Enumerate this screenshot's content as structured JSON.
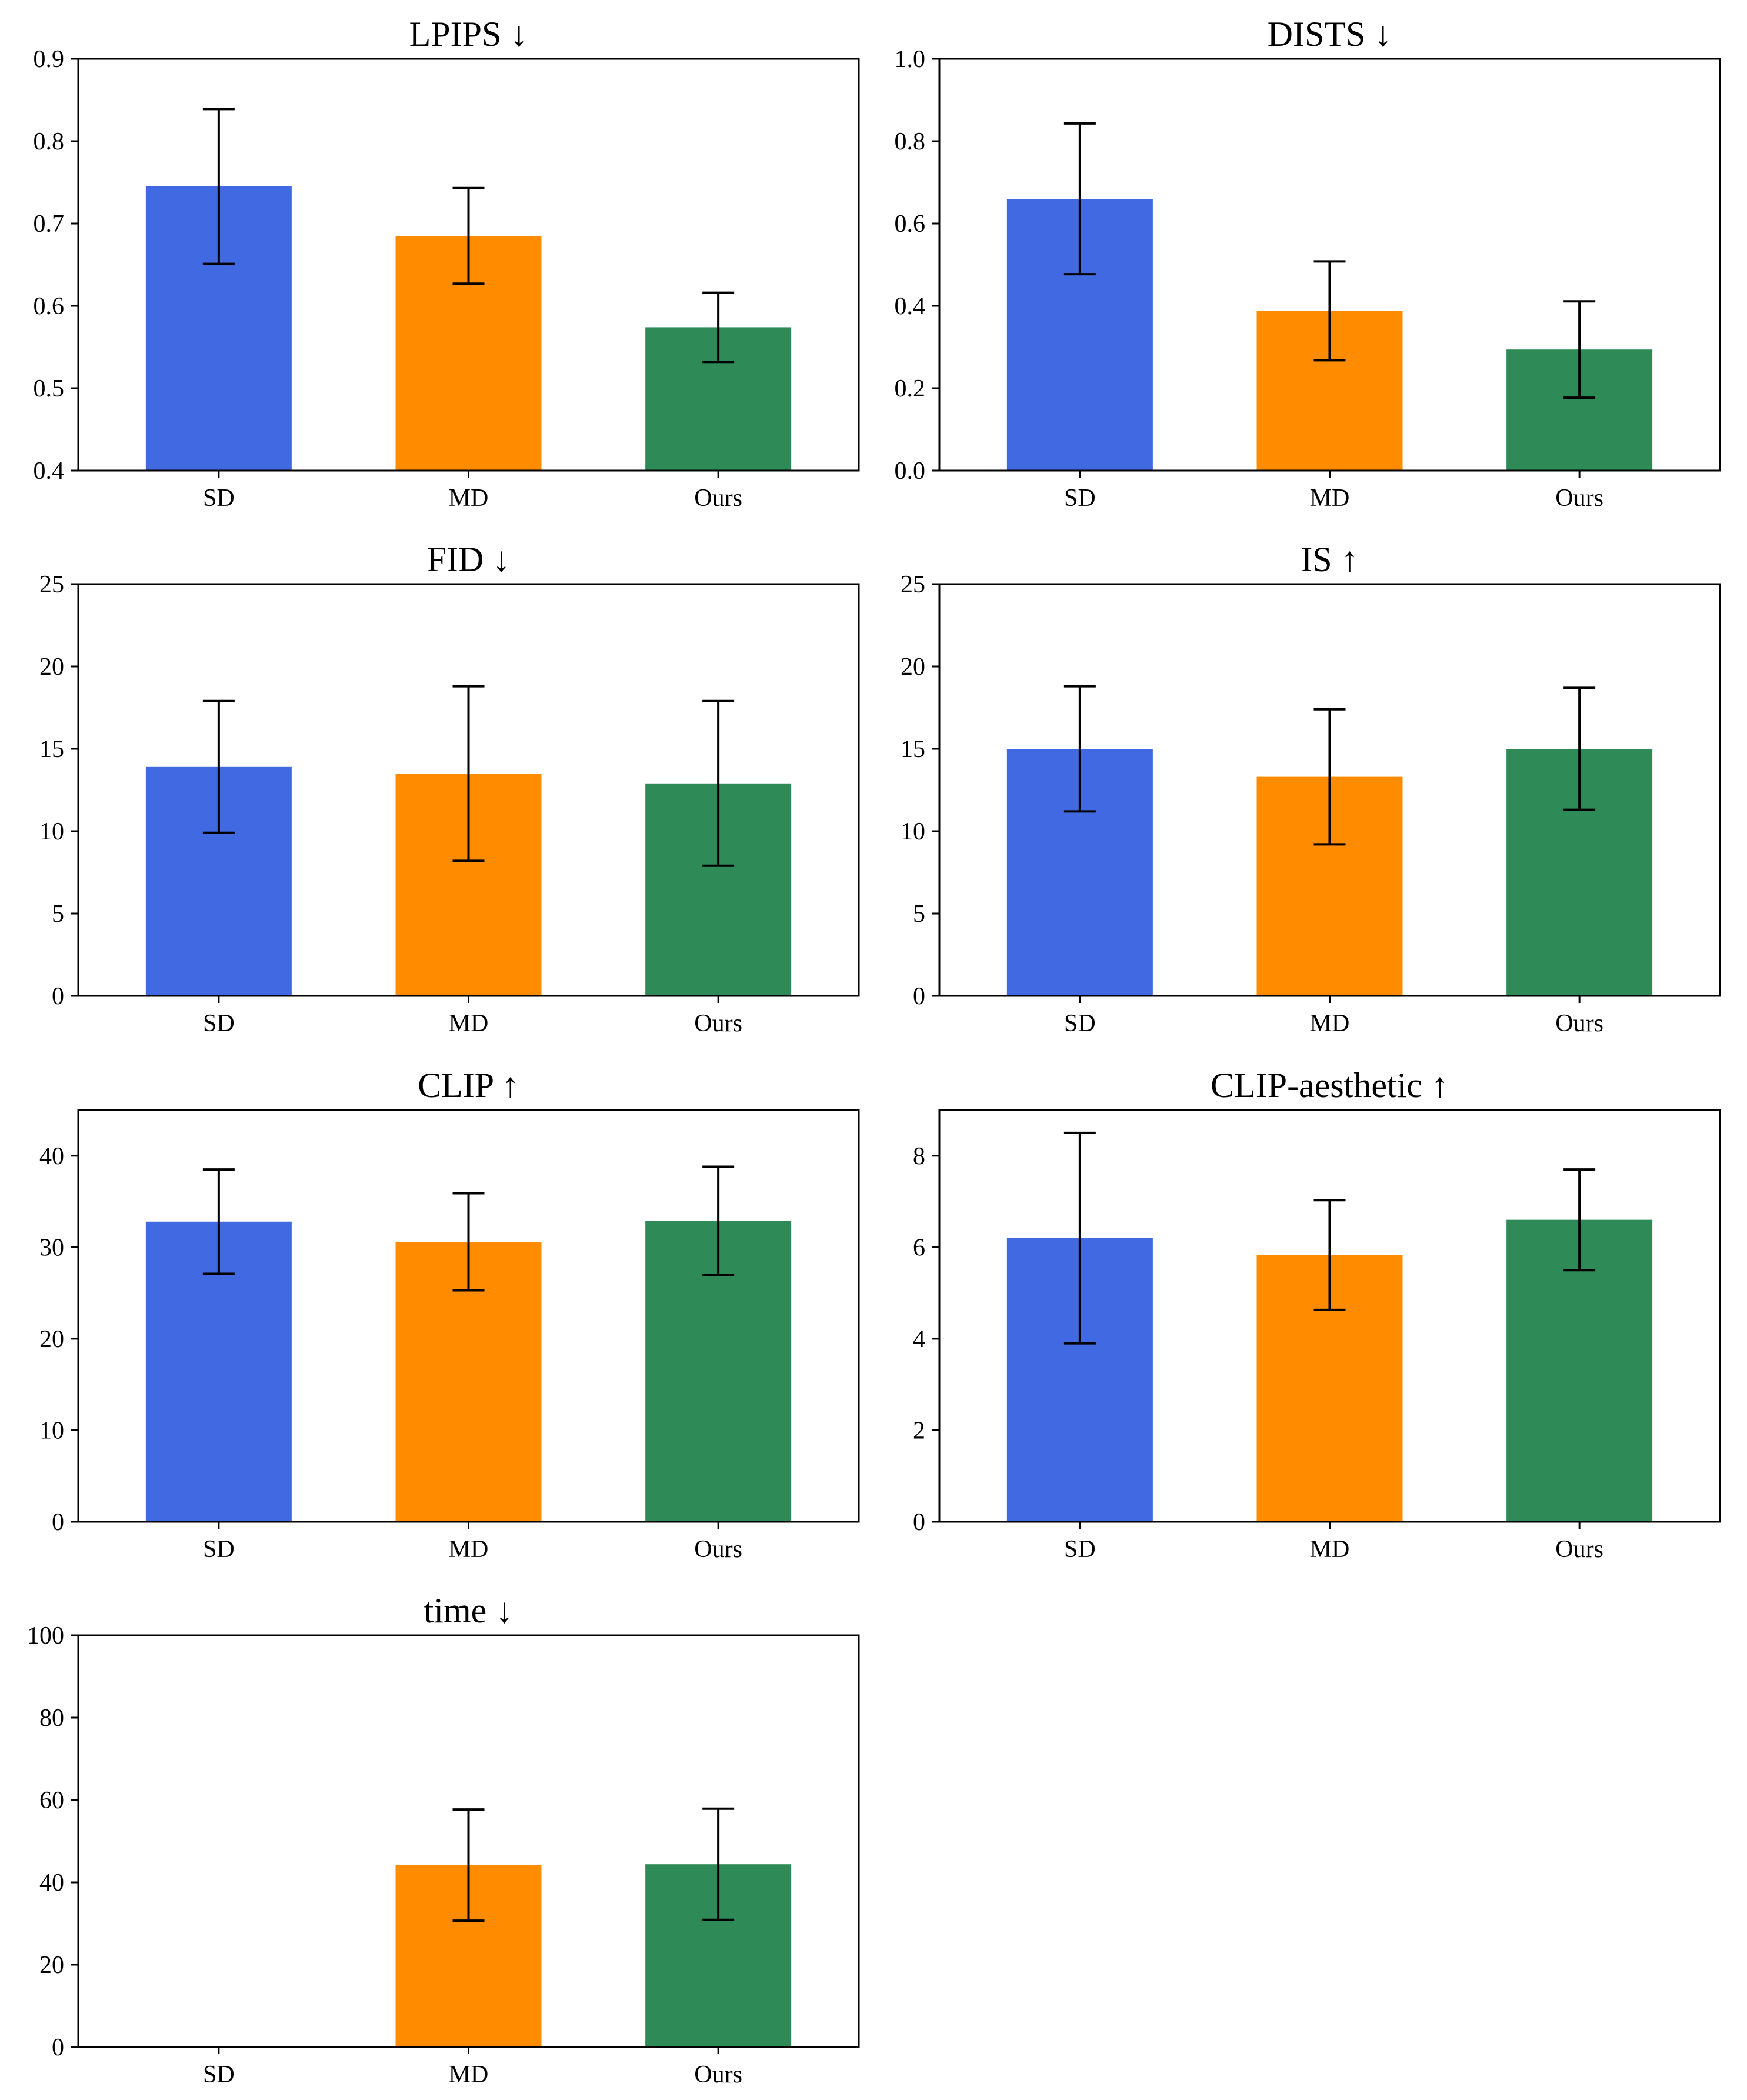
{
  "colors": {
    "SD": "#4169e1",
    "MD": "#ff8c00",
    "Ours": "#2e8b57"
  },
  "chart_data": [
    {
      "type": "bar",
      "title": "LPIPS ↓",
      "categories": [
        "SD",
        "MD",
        "Ours"
      ],
      "values": [
        0.745,
        0.685,
        0.574
      ],
      "errors": [
        0.094,
        0.058,
        0.042
      ],
      "ylim": [
        0.4,
        0.9
      ],
      "yticks": [
        0.4,
        0.5,
        0.6,
        0.7,
        0.8,
        0.9
      ],
      "decimals": 1
    },
    {
      "type": "bar",
      "title": "DISTS ↓",
      "categories": [
        "SD",
        "MD",
        "Ours"
      ],
      "values": [
        0.66,
        0.388,
        0.294
      ],
      "errors": [
        0.183,
        0.12,
        0.117
      ],
      "ylim": [
        0.0,
        1.0
      ],
      "yticks": [
        0.0,
        0.2,
        0.4,
        0.6,
        0.8,
        1.0
      ],
      "decimals": 1
    },
    {
      "type": "bar",
      "title": "FID ↓",
      "categories": [
        "SD",
        "MD",
        "Ours"
      ],
      "values": [
        13.9,
        13.5,
        12.9
      ],
      "errors": [
        4.0,
        5.3,
        5.0
      ],
      "ylim": [
        0,
        25
      ],
      "yticks": [
        0,
        5,
        10,
        15,
        20,
        25
      ],
      "decimals": 0
    },
    {
      "type": "bar",
      "title": "IS ↑",
      "categories": [
        "SD",
        "MD",
        "Ours"
      ],
      "values": [
        15.0,
        13.3,
        15.0
      ],
      "errors": [
        3.8,
        4.1,
        3.7
      ],
      "ylim": [
        0,
        25
      ],
      "yticks": [
        0,
        5,
        10,
        15,
        20,
        25
      ],
      "decimals": 0
    },
    {
      "type": "bar",
      "title": "CLIP ↑",
      "categories": [
        "SD",
        "MD",
        "Ours"
      ],
      "values": [
        32.8,
        30.6,
        32.9
      ],
      "errors": [
        5.7,
        5.3,
        5.9
      ],
      "ylim": [
        0,
        45
      ],
      "yticks": [
        0,
        10,
        20,
        30,
        40
      ],
      "decimals": 0
    },
    {
      "type": "bar",
      "title": "CLIP-aesthetic ↑",
      "categories": [
        "SD",
        "MD",
        "Ours"
      ],
      "values": [
        6.2,
        5.83,
        6.6
      ],
      "errors": [
        2.3,
        1.2,
        1.1
      ],
      "ylim": [
        0,
        9
      ],
      "yticks": [
        0,
        2,
        4,
        6,
        8
      ],
      "decimals": 0
    },
    {
      "type": "bar",
      "title": "time ↓",
      "categories": [
        "SD",
        "MD",
        "Ours"
      ],
      "values": [
        0,
        44.2,
        44.4
      ],
      "errors": [
        0,
        13.5,
        13.5
      ],
      "ylim": [
        0,
        100
      ],
      "yticks": [
        0,
        20,
        40,
        60,
        80,
        100
      ],
      "decimals": 0
    }
  ]
}
